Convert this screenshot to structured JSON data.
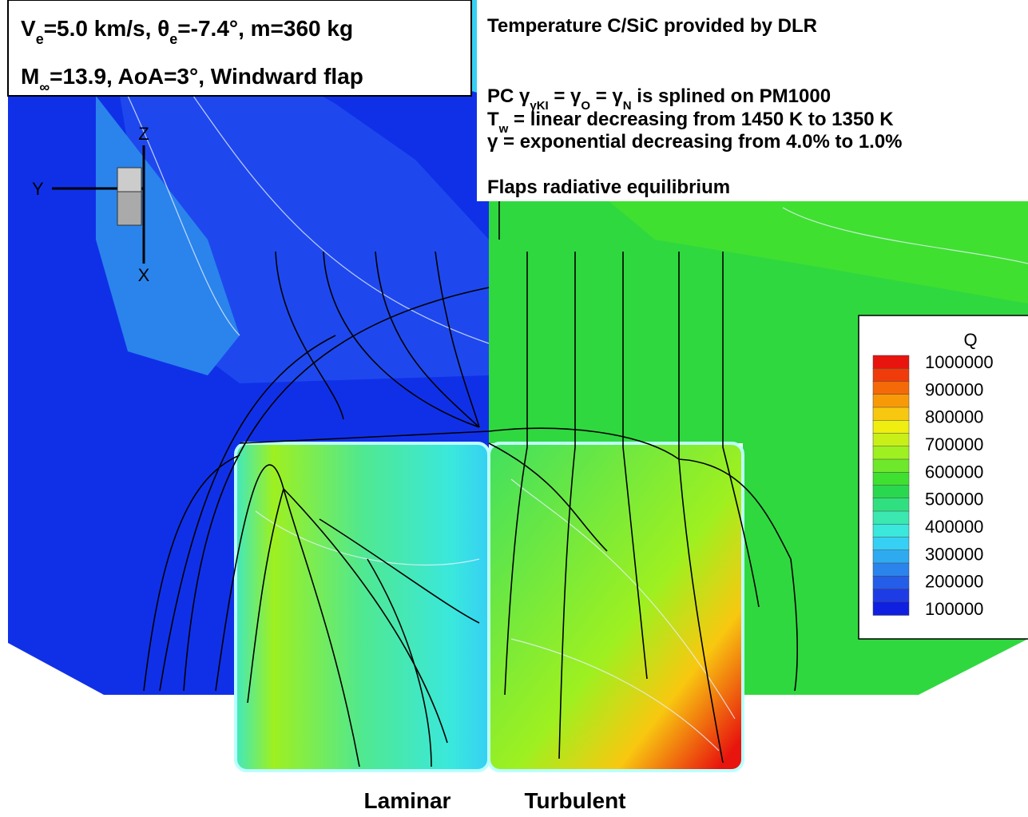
{
  "info_box": {
    "line1": [
      "V",
      "e",
      "=5.0 km/s, θ",
      "e",
      "=-7.4°, m=360 kg"
    ],
    "line2": [
      "M",
      "∞",
      "=13.9, AoA=3°, Windward flap"
    ]
  },
  "notes_box": {
    "line1": "Temperature C/SiC provided by DLR",
    "line2": [
      "PC γ",
      "γKI",
      " = γ",
      "O",
      " = γ",
      "N",
      " is splined on PM1000"
    ],
    "line3": [
      "T",
      "w",
      " = linear decreasing from 1450 K to 1350 K"
    ],
    "line4": "γ = exponential decreasing from 4.0% to 1.0%",
    "line5": "Flaps radiative equilibrium"
  },
  "axes_triad": {
    "z": "Z",
    "y": "Y",
    "x": "X"
  },
  "legend": {
    "title": "Q",
    "levels": [
      1000000,
      900000,
      800000,
      700000,
      600000,
      500000,
      400000,
      300000,
      200000,
      100000
    ],
    "colors": [
      "#e8140e",
      "#f03c0a",
      "#f56a08",
      "#f89a08",
      "#f8c810",
      "#f0ee10",
      "#c8f018",
      "#9ef020",
      "#6ee82a",
      "#40e030",
      "#2ad850",
      "#30e080",
      "#3ae8b0",
      "#3ae8dc",
      "#36d0f4",
      "#2eaaf0",
      "#2a84ec",
      "#245ee8",
      "#1e3ce6",
      "#1020e0"
    ]
  },
  "captions": {
    "left": "Laminar",
    "right": "Turbulent"
  }
}
